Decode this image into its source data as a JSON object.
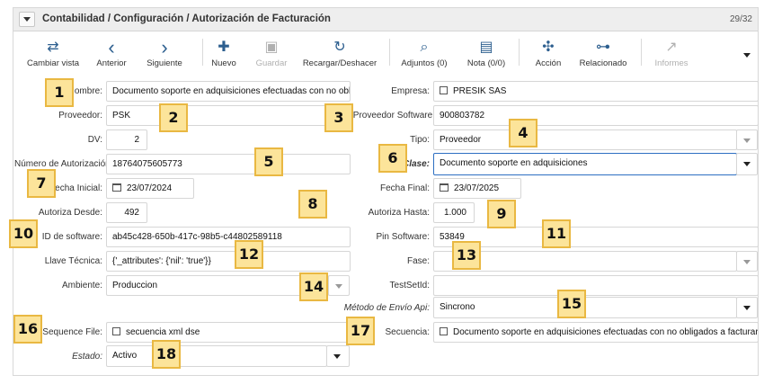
{
  "header": {
    "breadcrumb": "Contabilidad / Configuración / Autorización de Facturación",
    "record_position": "29/32"
  },
  "toolbar": [
    {
      "name": "switch-view",
      "icon": "⇄",
      "label": "Cambiar vista",
      "enabled": true
    },
    {
      "name": "previous",
      "icon": "‹",
      "label": "Anterior",
      "enabled": true
    },
    {
      "name": "next",
      "icon": "›",
      "label": "Siguiente",
      "enabled": true
    },
    {
      "name": "new",
      "icon": "✚",
      "label": "Nuevo",
      "enabled": true
    },
    {
      "name": "save",
      "icon": "▣",
      "label": "Guardar",
      "enabled": false
    },
    {
      "name": "reload",
      "icon": "↻",
      "label": "Recargar/Deshacer",
      "enabled": true
    },
    {
      "name": "attachments",
      "icon": "⌕",
      "label": "Adjuntos (0)",
      "enabled": true
    },
    {
      "name": "notes",
      "icon": "▤",
      "label": "Nota (0/0)",
      "enabled": true
    },
    {
      "name": "action",
      "icon": "✣",
      "label": "Acción",
      "enabled": true
    },
    {
      "name": "related",
      "icon": "⊶",
      "label": "Relacionado",
      "enabled": true
    },
    {
      "name": "reports",
      "icon": "↗",
      "label": "Informes",
      "enabled": false
    }
  ],
  "form": {
    "nombre": {
      "label": "Nombre:",
      "value": "Documento soporte en adquisiciones efectuadas con no obligados a"
    },
    "empresa": {
      "label": "Empresa:",
      "value": "PRESIK SAS"
    },
    "proveedor": {
      "label": "Proveedor:",
      "value": "PSK"
    },
    "id_proveedor_software": {
      "label": "ID Proveedor Software:",
      "value": "900803782"
    },
    "dv": {
      "label": "DV:",
      "value": "2"
    },
    "tipo": {
      "label": "Tipo:",
      "value": "Proveedor"
    },
    "numero_autorizacion": {
      "label": "Número de Autorización:",
      "value": "18764075605773"
    },
    "clase": {
      "label": "Clase:",
      "value": "Documento soporte en adquisiciones"
    },
    "fecha_inicial": {
      "label": "Fecha Inicial:",
      "value": "23/07/2024"
    },
    "fecha_final": {
      "label": "Fecha Final:",
      "value": "23/07/2025"
    },
    "autoriza_desde": {
      "label": "Autoriza Desde:",
      "value": "492"
    },
    "autoriza_hasta": {
      "label": "Autoriza Hasta:",
      "value": "1.000"
    },
    "id_software": {
      "label": "ID de software:",
      "value": "ab45c428-650b-417c-98b5-c44802589118"
    },
    "pin_software": {
      "label": "Pin Software:",
      "value": "53849"
    },
    "llave_tecnica": {
      "label": "Llave Técnica:",
      "value": "{'_attributes': {'nil': 'true'}}"
    },
    "fase": {
      "label": "Fase:",
      "value": ""
    },
    "ambiente": {
      "label": "Ambiente:",
      "value": "Produccion"
    },
    "testsetid": {
      "label": "TestSetId:",
      "value": ""
    },
    "metodo_envio_api": {
      "label": "Método de Envío Api:",
      "value": "Sincrono"
    },
    "sequence_file": {
      "label": "Sequence File:",
      "value": "secuencia xml dse"
    },
    "secuencia": {
      "label": "Secuencia:",
      "value": "Documento soporte en adquisiciones efectuadas con no obligados a facturar"
    },
    "estado": {
      "label": "Estado:",
      "value": "Activo"
    }
  },
  "annotations": [
    "1",
    "2",
    "3",
    "4",
    "5",
    "6",
    "7",
    "8",
    "9",
    "10",
    "11",
    "12",
    "13",
    "14",
    "15",
    "16",
    "17",
    "18"
  ],
  "colors": {
    "accent": "#2d5f8f",
    "focus_border": "#2d6fc2",
    "badge_fill": "#fce49a",
    "badge_border": "#e9b842"
  }
}
